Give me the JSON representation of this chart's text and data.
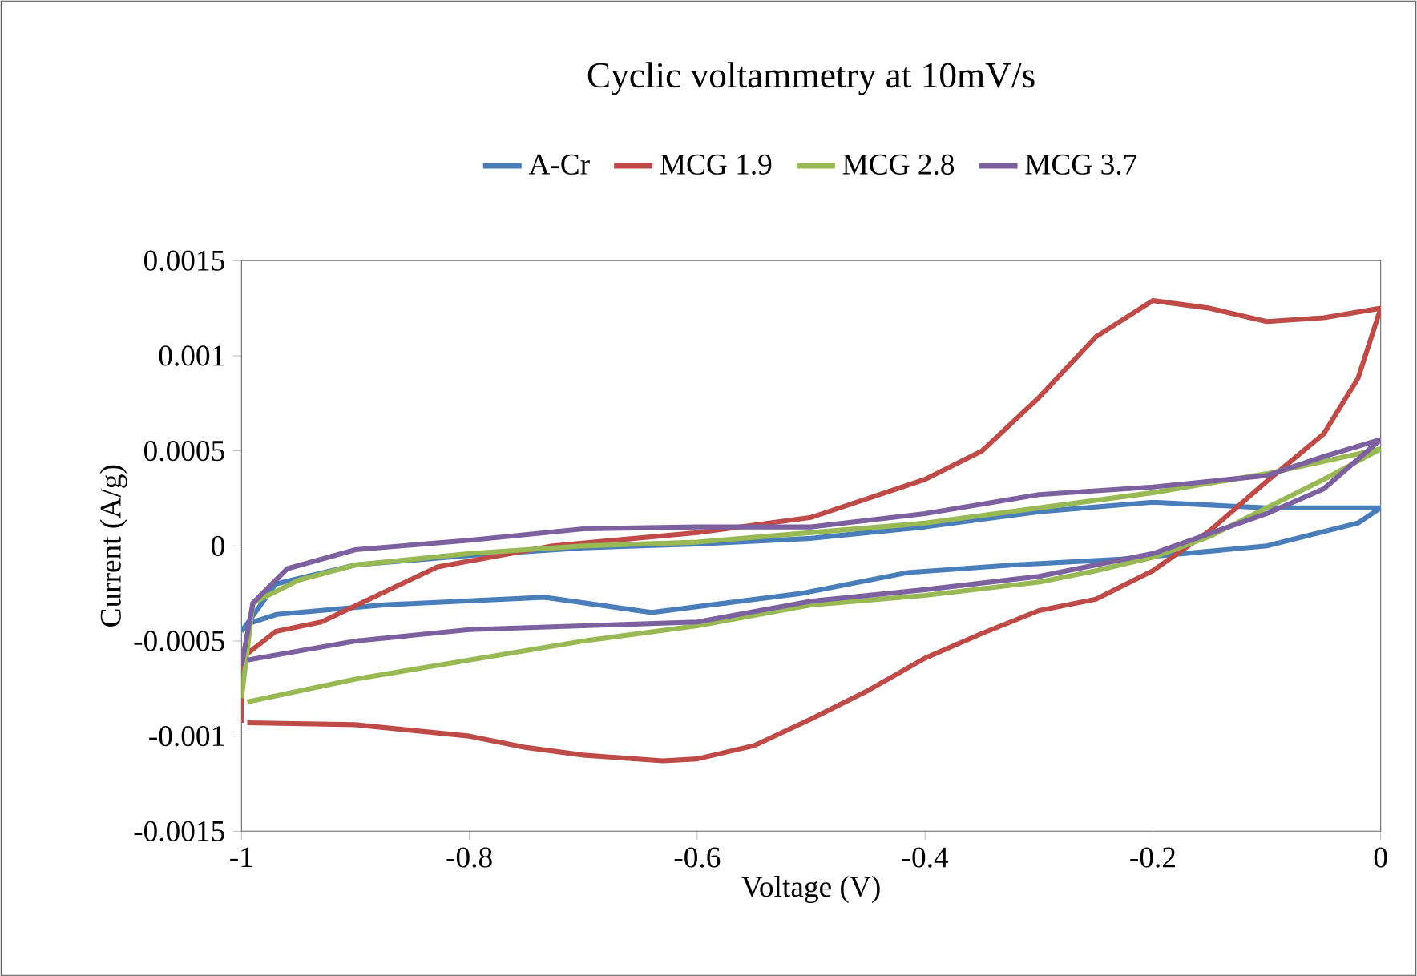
{
  "chart_data": {
    "type": "line",
    "title": "Cyclic voltammetry at 10mV/s",
    "xlabel": "Voltage (V)",
    "ylabel": "Current (A/g)",
    "xlim": [
      -1,
      0
    ],
    "xticks": [
      -1,
      -0.8,
      -0.6,
      -0.4,
      -0.2,
      0
    ],
    "ylim": [
      -0.0015,
      0.0015
    ],
    "yticks": [
      -0.0015,
      -0.001,
      -0.0005,
      0,
      0.0005,
      0.001,
      0.0015
    ],
    "grid": false,
    "legend": "top",
    "marker": "none",
    "line_style": "solid",
    "series": [
      {
        "name": "A-Cr",
        "color": "#4a7ebb",
        "x": [
          -1,
          -0.97,
          -0.9,
          -0.8,
          -0.7,
          -0.6,
          -0.5,
          -0.4,
          -0.3,
          -0.2,
          -0.1,
          0
        ],
        "values": [
          -0.00045,
          -0.0002,
          -0.0001,
          -5e-05,
          -1e-05,
          1e-05,
          4e-05,
          0.0001,
          0.00018,
          0.00023,
          0.0002,
          0.0002
        ]
      },
      {
        "color": "#4a7ebb",
        "x": [
          0,
          -0.02,
          -0.1,
          -0.228,
          -0.322,
          -0.415,
          -0.509,
          -0.64,
          -0.734,
          -0.875,
          -0.969,
          -0.995
        ],
        "values": [
          0.0002,
          0.00012,
          0,
          -7e-05,
          -0.0001,
          -0.00014,
          -0.00025,
          -0.00035,
          -0.00027,
          -0.00031,
          -0.00036,
          -0.00041
        ]
      },
      {
        "name": "MCG 1.9",
        "color": "#be4b48",
        "x": [
          -1,
          -1,
          -0.97,
          -0.93,
          -0.828,
          -0.727,
          -0.6,
          -0.5,
          -0.4,
          -0.35,
          -0.3,
          -0.25,
          -0.2,
          -0.15,
          -0.1,
          -0.05,
          0
        ],
        "values": [
          -0.00093,
          -0.00059,
          -0.00045,
          -0.0004,
          -0.00011,
          0,
          7e-05,
          0.00015,
          0.00035,
          0.0005,
          0.00078,
          0.0011,
          0.00129,
          0.00125,
          0.00118,
          0.0012,
          0.00125
        ]
      },
      {
        "color": "#be4b48",
        "x": [
          0,
          -0.02,
          -0.05,
          -0.1,
          -0.15,
          -0.2,
          -0.25,
          -0.3,
          -0.35,
          -0.4,
          -0.45,
          -0.5,
          -0.55,
          -0.6,
          -0.63,
          -0.7,
          -0.75,
          -0.8,
          -0.9,
          -0.995
        ],
        "values": [
          0.00125,
          0.00088,
          0.00059,
          0.00034,
          8e-05,
          -0.00013,
          -0.00028,
          -0.00034,
          -0.00046,
          -0.00059,
          -0.00076,
          -0.00091,
          -0.00105,
          -0.00112,
          -0.00113,
          -0.0011,
          -0.00106,
          -0.001,
          -0.00094,
          -0.00093
        ]
      },
      {
        "name": "MCG 2.8",
        "color": "#98b954",
        "x": [
          -1,
          -0.99,
          -0.95,
          -0.9,
          -0.8,
          -0.7,
          -0.6,
          -0.5,
          -0.4,
          -0.3,
          -0.2,
          -0.1,
          0
        ],
        "values": [
          -0.0008,
          -0.0003,
          -0.00018,
          -0.0001,
          -4e-05,
          0,
          2e-05,
          7e-05,
          0.00012,
          0.0002,
          0.00028,
          0.00038,
          0.00051
        ]
      },
      {
        "color": "#98b954",
        "x": [
          0,
          -0.05,
          -0.1,
          -0.15,
          -0.2,
          -0.25,
          -0.3,
          -0.4,
          -0.5,
          -0.6,
          -0.7,
          -0.8,
          -0.9,
          -0.995
        ],
        "values": [
          0.00051,
          0.00035,
          0.0002,
          5e-05,
          -6e-05,
          -0.00013,
          -0.00019,
          -0.00026,
          -0.00031,
          -0.00042,
          -0.0005,
          -0.0006,
          -0.0007,
          -0.00082
        ]
      },
      {
        "name": "MCG 3.7",
        "color": "#7d60a0",
        "x": [
          -1,
          -0.99,
          -0.96,
          -0.9,
          -0.8,
          -0.7,
          -0.6,
          -0.5,
          -0.4,
          -0.3,
          -0.2,
          -0.1,
          -0.05,
          0
        ],
        "values": [
          -0.00063,
          -0.0003,
          -0.00012,
          -2e-05,
          3e-05,
          9e-05,
          0.0001,
          0.0001,
          0.00017,
          0.00027,
          0.00031,
          0.00037,
          0.00047,
          0.00056
        ]
      },
      {
        "color": "#7d60a0",
        "x": [
          0,
          -0.05,
          -0.1,
          -0.2,
          -0.3,
          -0.4,
          -0.5,
          -0.6,
          -0.7,
          -0.8,
          -0.9,
          -0.995
        ],
        "values": [
          0.00056,
          0.0003,
          0.00017,
          -4e-05,
          -0.00016,
          -0.00023,
          -0.00029,
          -0.0004,
          -0.00042,
          -0.00044,
          -0.0005,
          -0.0006
        ]
      }
    ]
  }
}
